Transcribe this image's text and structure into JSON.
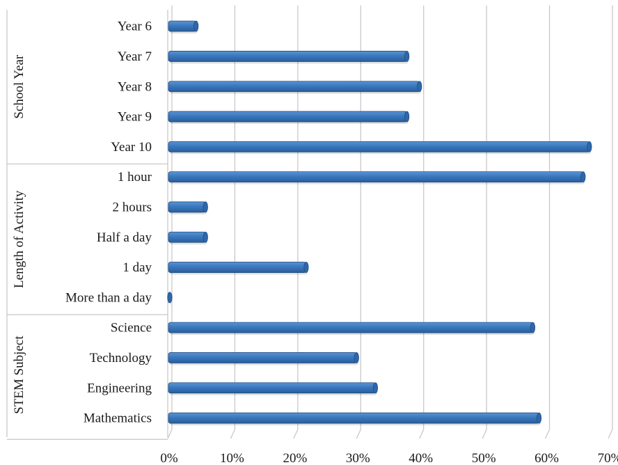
{
  "chart_data": {
    "type": "bar",
    "orientation": "horizontal",
    "groups": [
      {
        "name": "School Year",
        "categories": [
          "Year 6",
          "Year 7",
          "Year 8",
          "Year 9",
          "Year 10"
        ]
      },
      {
        "name": "Length of Activity",
        "categories": [
          "1 hour",
          "2 hours",
          "Half a day",
          "1 day",
          "More than a day"
        ]
      },
      {
        "name": "STEM Subject",
        "categories": [
          "Science",
          "Technology",
          "Engineering",
          "Mathematics"
        ]
      }
    ],
    "categories": [
      "Year 6",
      "Year 7",
      "Year 8",
      "Year 9",
      "Year 10",
      "1 hour",
      "2 hours",
      "Half a day",
      "1 day",
      "More than a day",
      "Science",
      "Technology",
      "Engineering",
      "Mathematics"
    ],
    "values": [
      0.045,
      0.38,
      0.4,
      0.38,
      0.67,
      0.66,
      0.06,
      0.06,
      0.22,
      0.002,
      0.58,
      0.3,
      0.33,
      0.59
    ],
    "xlim": [
      0,
      0.7
    ],
    "x_ticks": [
      0,
      0.1,
      0.2,
      0.3,
      0.4,
      0.5,
      0.6,
      0.7
    ],
    "x_tick_labels": [
      "0%",
      "10%",
      "20%",
      "30%",
      "40%",
      "50%",
      "60%",
      "70%"
    ],
    "grid": true,
    "bar_color": "#3a78be",
    "bar_edge_color": "#1f4e85",
    "grid_color": "#c8c8c8"
  }
}
